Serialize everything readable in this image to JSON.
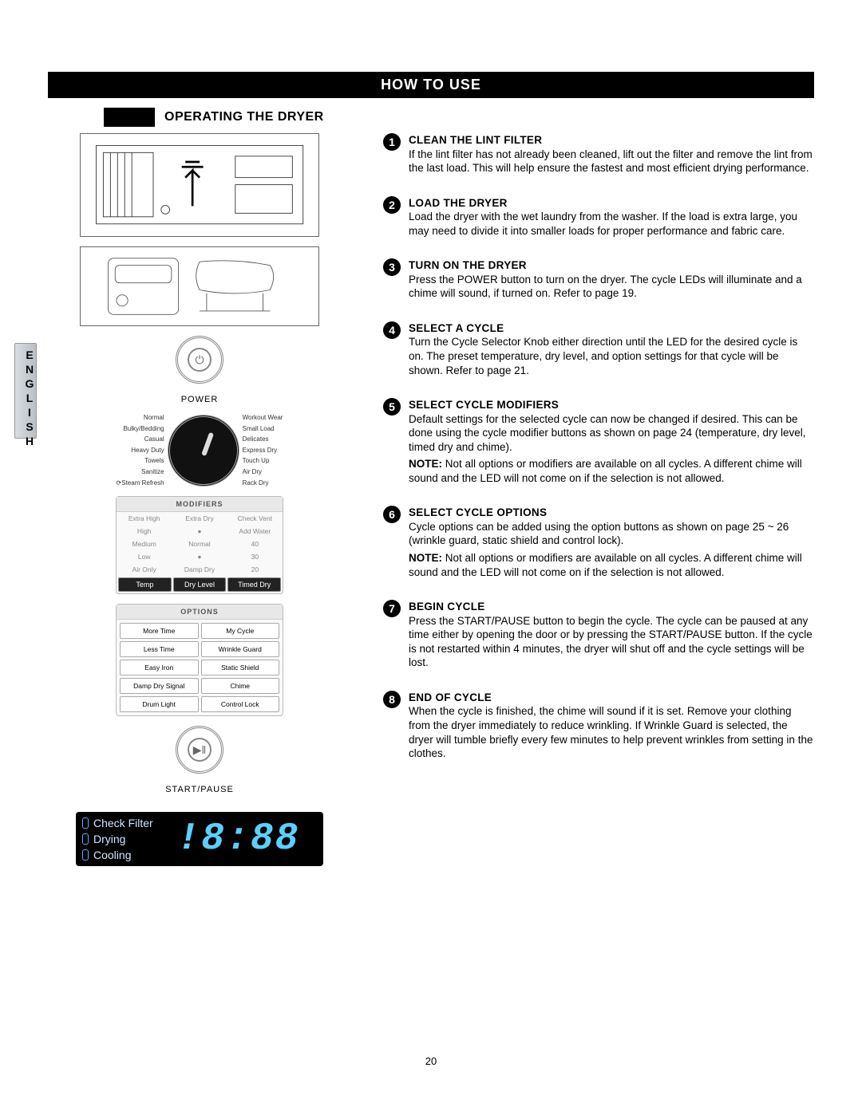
{
  "lang_tab": "ENGLISH",
  "header": "HOW TO USE",
  "section_title": "OPERATING THE DRYER",
  "power_label": "POWER",
  "start_label": "START/PAUSE",
  "dial": {
    "left": [
      "Normal",
      "Bulky/Bedding",
      "Casual",
      "Heavy Duty",
      "Towels",
      "Sanitize",
      "⟳Steam Refresh"
    ],
    "right": [
      "Workout Wear",
      "Small Load",
      "Delicates",
      "Express Dry",
      "Touch Up",
      "Air Dry",
      "Rack Dry"
    ]
  },
  "modifiers": {
    "title": "MODIFIERS",
    "rows": [
      [
        "Extra High",
        "Extra Dry",
        "Check Vent"
      ],
      [
        "High",
        "●",
        "Add Water"
      ],
      [
        "Medium",
        "Normal",
        "40"
      ],
      [
        "Low",
        "●",
        "30"
      ],
      [
        "Air Only",
        "Damp Dry",
        "20"
      ]
    ],
    "buttons": [
      "Temp",
      "Dry Level",
      "Timed Dry"
    ]
  },
  "options": {
    "title": "OPTIONS",
    "buttons": [
      "More Time",
      "My Cycle",
      "Less Time",
      "Wrinkle Guard",
      "Easy Iron",
      "Static Shield",
      "Damp Dry Signal",
      "Chime",
      "Drum Light",
      "Control Lock"
    ]
  },
  "lcd": {
    "rows": [
      "Check Filter",
      "Drying",
      "Cooling"
    ],
    "digits": "!8:88"
  },
  "steps": [
    {
      "n": "1",
      "title": "CLEAN THE LINT FILTER",
      "body": "If the lint filter has not already been cleaned, lift out the filter and remove the lint from the last load. This will help ensure the fastest and most efficient drying performance."
    },
    {
      "n": "2",
      "title": "LOAD THE DRYER",
      "body": "Load the dryer with the wet laundry from the washer. If the load is extra large, you may need to divide it into smaller loads for proper performance and fabric care."
    },
    {
      "n": "3",
      "title": "TURN ON THE DRYER",
      "body": "Press the POWER button to turn on the dryer. The cycle LEDs will illuminate and a chime will sound, if turned on. Refer to page 19."
    },
    {
      "n": "4",
      "title": "SELECT A CYCLE",
      "body": "Turn the Cycle Selector Knob either direction until the LED for the desired cycle is on. The preset temperature, dry level, and option settings for that cycle will be shown. Refer to page 21."
    },
    {
      "n": "5",
      "title": "SELECT CYCLE MODIFIERS",
      "body": "Default settings for the selected cycle can now be changed if desired. This can be done using the cycle modifier buttons as shown on page 24 (temperature, dry level, timed dry and chime).",
      "note": "NOTE: Not all options or modifiers are available on all cycles. A different chime will sound and the LED will not come on if the selection is not allowed."
    },
    {
      "n": "6",
      "title": "SELECT CYCLE OPTIONS",
      "body": "Cycle options can be added using the option buttons as shown on page 25 ~ 26 (wrinkle guard, static shield and control lock).",
      "note": "NOTE: Not all options or modifiers are available on all cycles. A different chime will sound and the LED will not come on if the selection is not allowed."
    },
    {
      "n": "7",
      "title": "BEGIN CYCLE",
      "body": "Press the START/PAUSE button to begin the cycle. The cycle can be paused at any time either by opening the door or by pressing the START/PAUSE button. If the cycle is not restarted within 4 minutes, the dryer will shut off and the cycle settings will be lost."
    },
    {
      "n": "8",
      "title": "END OF CYCLE",
      "body": "When the cycle is finished, the chime will sound if it is set. Remove your clothing from the dryer immediately to reduce wrinkling. If Wrinkle Guard is selected, the dryer will tumble briefly every few minutes to help prevent wrinkles from setting in the clothes."
    }
  ],
  "page_number": "20"
}
